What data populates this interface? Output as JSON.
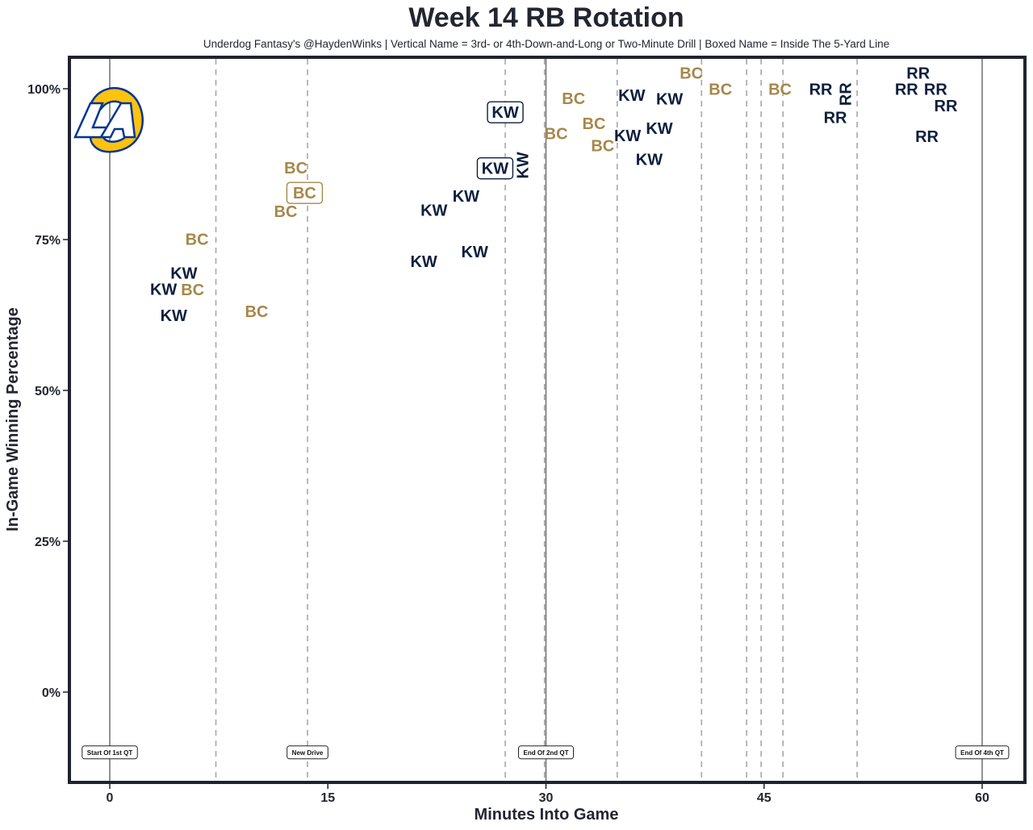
{
  "chart_data": {
    "type": "scatter",
    "title": "Week 14 RB Rotation",
    "subtitle": "Underdog Fantasy's @HaydenWinks | Vertical Name = 3rd- or 4th-Down-and-Long or Two-Minute Drill | Boxed Name = Inside The 5-Yard Line",
    "xlabel": "Minutes Into Game",
    "ylabel": "In-Game Winning Percentage",
    "xlim": [
      -2.7,
      62.9
    ],
    "ylim": [
      -15,
      105
    ],
    "x_ticks": [
      0,
      15,
      30,
      45,
      60
    ],
    "x_tick_labels": [
      "0",
      "15",
      "30",
      "45",
      "60"
    ],
    "y_ticks": [
      0,
      25,
      50,
      75,
      100
    ],
    "y_tick_labels": [
      "0%",
      "25%",
      "50%",
      "75%",
      "100%"
    ],
    "grid": false,
    "colors": {
      "KW": "#0c1f3d",
      "BC": "#a6884a",
      "RR": "#0c1f3d",
      "frame": "#1f2330"
    },
    "solid_lines": [
      0,
      30,
      60
    ],
    "dashed_lines": [
      7.3,
      13.6,
      27.2,
      29.9,
      34.9,
      40.7,
      43.8,
      44.8,
      46.3,
      51.4
    ],
    "annotations": [
      {
        "x": 0,
        "y": -10,
        "text": "Start Of 1st QT"
      },
      {
        "x": 13.6,
        "y": -10,
        "text": "New Drive"
      },
      {
        "x": 30,
        "y": -10,
        "text": "End Of 2nd QT"
      },
      {
        "x": 60,
        "y": -10,
        "text": "End Of 4th QT"
      }
    ],
    "logo_text": "LA",
    "points": [
      {
        "label": "KW",
        "x": 3.7,
        "y": 66.8
      },
      {
        "label": "KW",
        "x": 5.1,
        "y": 66.8
      },
      {
        "label": "KW",
        "x": 4.4,
        "y": 62.4
      },
      {
        "label": "BC",
        "x": 6.0,
        "y": 75.1
      },
      {
        "label": "BC",
        "x": 5.7,
        "y": 69.4
      },
      {
        "label": "BC",
        "x": 10.1,
        "y": 63.1
      },
      {
        "label": "BC",
        "x": 12.1,
        "y": 79.7
      },
      {
        "label": "BC",
        "x": 12.8,
        "y": 86.9
      },
      {
        "label": "BC",
        "x": 13.4,
        "y": 85.4,
        "boxed": true
      },
      {
        "label": "KW",
        "x": 21.6,
        "y": 71.4
      },
      {
        "label": "KW",
        "x": 22.3,
        "y": 79.9
      },
      {
        "label": "KW",
        "x": 24.5,
        "y": 82.2
      },
      {
        "label": "KW",
        "x": 25.1,
        "y": 73.0
      },
      {
        "label": "KW",
        "x": 27.2,
        "y": 96.1,
        "boxed": true
      },
      {
        "label": "KW",
        "x": 26.5,
        "y": 86.8,
        "boxed": true
      },
      {
        "label": "KW",
        "x": 28.4,
        "y": 87.3,
        "vertical": true
      },
      {
        "label": "BC",
        "x": 30.7,
        "y": 92.6
      },
      {
        "label": "BC",
        "x": 31.9,
        "y": 98.4
      },
      {
        "label": "BC",
        "x": 33.3,
        "y": 96.9
      },
      {
        "label": "BC",
        "x": 33.9,
        "y": 90.6
      },
      {
        "label": "KW",
        "x": 35.9,
        "y": 98.9
      },
      {
        "label": "KW",
        "x": 38.5,
        "y": 98.3
      },
      {
        "label": "KW",
        "x": 37.8,
        "y": 96.1
      },
      {
        "label": "KW",
        "x": 37.1,
        "y": 91.0
      },
      {
        "label": "KW",
        "x": 36.5,
        "y": 89.6
      },
      {
        "label": "BC",
        "x": 40.0,
        "y": 99.9
      },
      {
        "label": "BC",
        "x": 42.0,
        "y": 99.9
      },
      {
        "label": "BC",
        "x": 46.1,
        "y": 99.9
      },
      {
        "label": "RR",
        "x": 48.9,
        "y": 99.9
      },
      {
        "label": "RR",
        "x": 49.9,
        "y": 97.9
      },
      {
        "label": "RR",
        "x": 50.6,
        "y": 99.1,
        "vertical": true
      },
      {
        "label": "RR",
        "x": 54.8,
        "y": 99.9
      },
      {
        "label": "RR",
        "x": 55.6,
        "y": 99.9
      },
      {
        "label": "RR",
        "x": 56.8,
        "y": 99.9
      },
      {
        "label": "RR",
        "x": 57.5,
        "y": 97.2
      },
      {
        "label": "RR",
        "x": 56.2,
        "y": 94.8
      }
    ]
  }
}
